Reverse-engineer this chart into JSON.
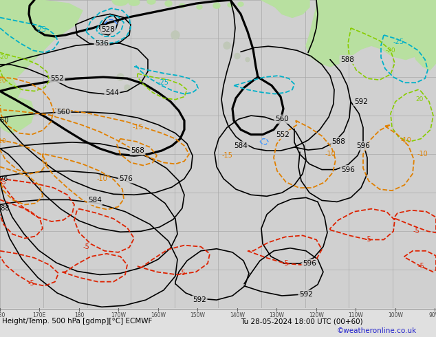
{
  "title_line1": "Height/Temp. 500 hPa [gdmp][°C] ECMWF",
  "title_line2": "Tu 28-05-2024 18:00 UTC (00+60)",
  "credit": "©weatheronline.co.uk",
  "ocean_color": "#d0d0d0",
  "land_color": "#b8e0a0",
  "grid_color": "#a8a8a8",
  "fig_width": 6.34,
  "fig_height": 4.9,
  "dpi": 100,
  "bottom_bar_color": "#e0e0e0",
  "credit_color": "#2222cc"
}
